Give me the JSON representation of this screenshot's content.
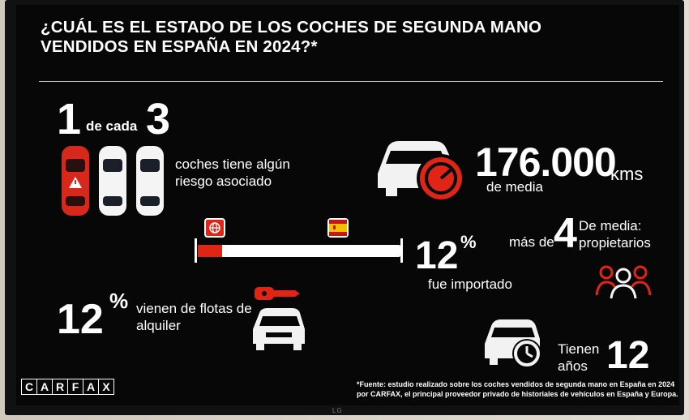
{
  "title": "¿CUÁL ES EL ESTADO DE LOS COCHES DE SEGUNDA MANO VENDIDOS EN ESPAÑA EN 2024?*",
  "risk": {
    "one": "1",
    "de_cada": "de cada",
    "three": "3",
    "text": "coches tiene algún riesgo asociado"
  },
  "km": {
    "value": "176.000",
    "unit": "kms",
    "sub": "de media"
  },
  "imported": {
    "value": "12",
    "sign": "%",
    "text": "fue importado",
    "fill_fraction": 0.12
  },
  "owners": {
    "mas_de": "más de",
    "value": "4",
    "text": "De media: propietarios"
  },
  "rental": {
    "value": "12",
    "sign": "%",
    "text": "vienen de flotas de alquiler"
  },
  "age": {
    "label": "Tienen años",
    "value": "12"
  },
  "brand": [
    "C",
    "A",
    "R",
    "F",
    "A",
    "X"
  ],
  "footnote": "*Fuente: estudio realizado sobre los coches vendidos de segunda mano en España en 2024 por CARFAX, el principal proveedor privado de historiales de vehículos en España y Europa.",
  "tv_brand": "LG",
  "colors": {
    "accent": "#e02517",
    "flag_yellow": "#f2c100"
  },
  "icons": [
    "car-red-warning-icon",
    "car-white-icon",
    "car-front-speedometer-icon",
    "globe-flag-icon",
    "spain-flag-icon",
    "people-icon",
    "car-keys-icon",
    "car-clock-icon"
  ]
}
